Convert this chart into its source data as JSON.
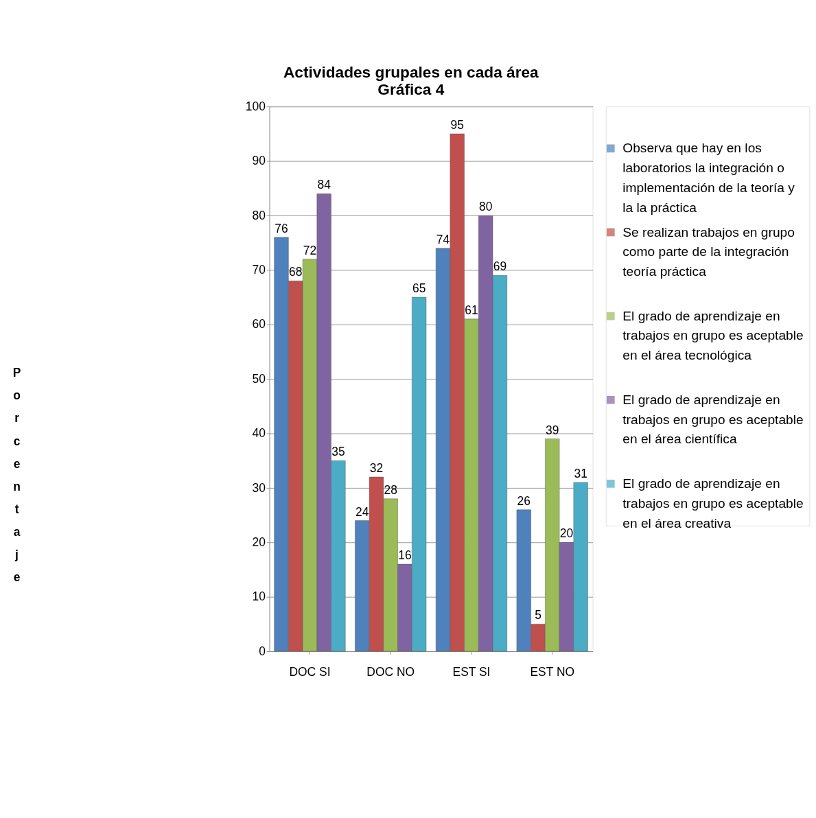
{
  "chart_data": {
    "type": "bar",
    "title": "Actividades grupales en cada área",
    "subtitle": "Gráfica 4",
    "ylabel": "Porcentaje",
    "categories": [
      "DOC SI",
      "DOC NO",
      "EST SI",
      "EST NO"
    ],
    "series": [
      {
        "name": "Observa que hay en los laboratorios la integración o implementación de la teoría y la la práctica",
        "color": "#4f81bd",
        "values": [
          76,
          24,
          74,
          26
        ]
      },
      {
        "name": "Se realizan trabajos en grupo como parte de la integración teoría práctica",
        "color": "#c0504d",
        "values": [
          68,
          32,
          95,
          5
        ]
      },
      {
        "name": "El grado de aprendizaje en trabajos en grupo es aceptable en el área tecnológica",
        "color": "#9bbb59",
        "values": [
          72,
          28,
          61,
          39
        ]
      },
      {
        "name": "El grado de aprendizaje en trabajos en grupo es aceptable en el área científica",
        "color": "#8064a2",
        "values": [
          84,
          16,
          80,
          20
        ]
      },
      {
        "name": "El grado de aprendizaje en trabajos en grupo es aceptable en el área creativa",
        "color": "#4bacc6",
        "values": [
          35,
          65,
          69,
          31
        ]
      }
    ],
    "ylim": [
      0,
      100
    ],
    "yticks": [
      0,
      10,
      20,
      30,
      40,
      50,
      60,
      70,
      80,
      90,
      100
    ],
    "grid": "y",
    "legend": "right",
    "data_labels": true
  }
}
